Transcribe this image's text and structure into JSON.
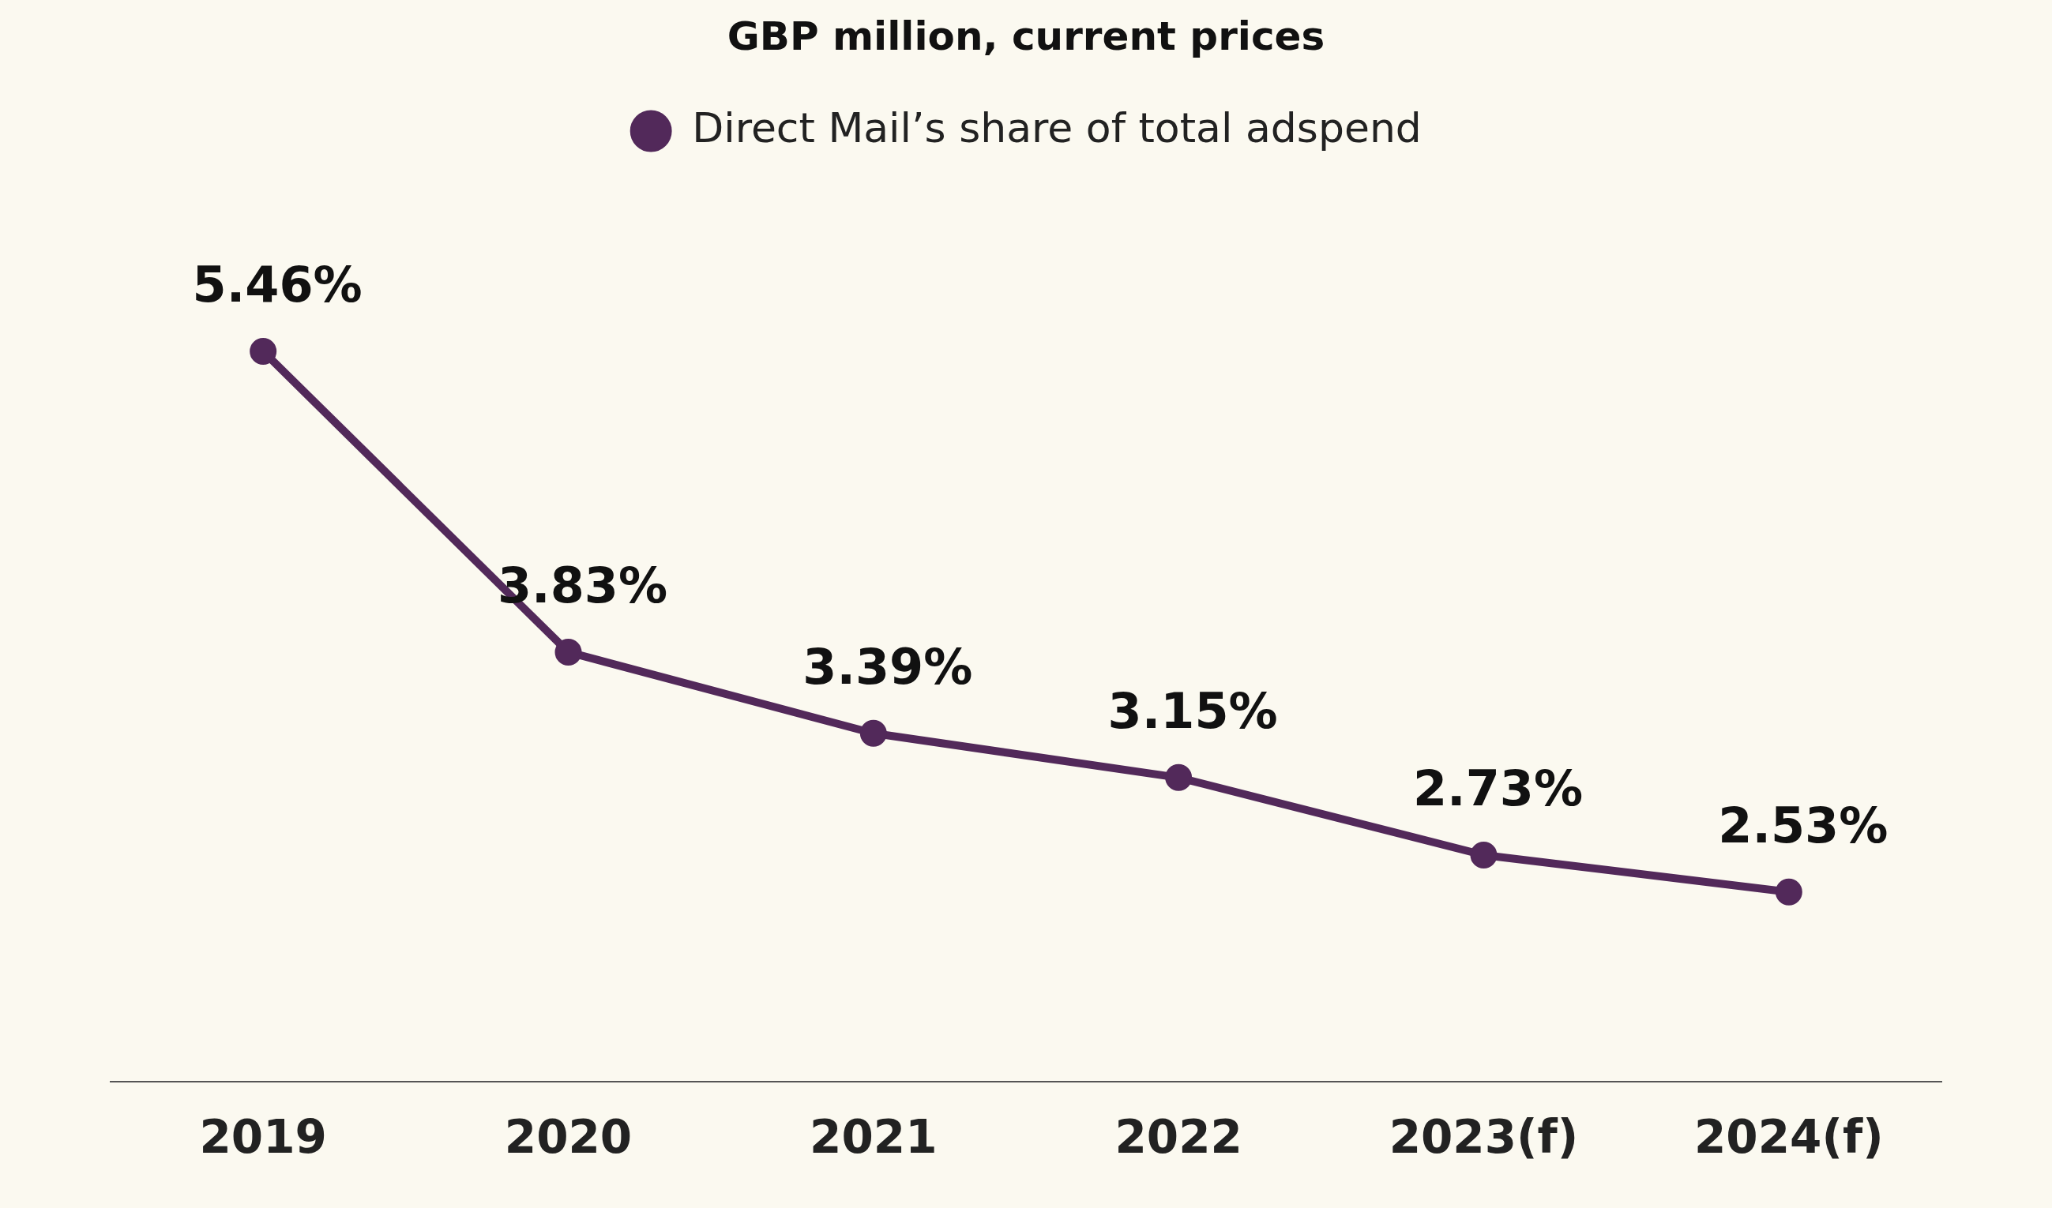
{
  "chart_data": {
    "type": "line",
    "title": "GBP million, current prices",
    "categories": [
      "2019",
      "2020",
      "2021",
      "2022",
      "2023(f)",
      "2024(f)"
    ],
    "series": [
      {
        "name": "Direct Mail’s share of total adspend",
        "color": "#52295a",
        "values": [
          5.46,
          3.83,
          3.39,
          3.15,
          2.73,
          2.53
        ],
        "value_labels": [
          "5.46%",
          "3.83%",
          "3.39%",
          "3.15%",
          "2.73%",
          "2.53%"
        ]
      }
    ],
    "tick_labels": "x",
    "legend": "top",
    "marker": "circle",
    "line_style": "solid"
  }
}
